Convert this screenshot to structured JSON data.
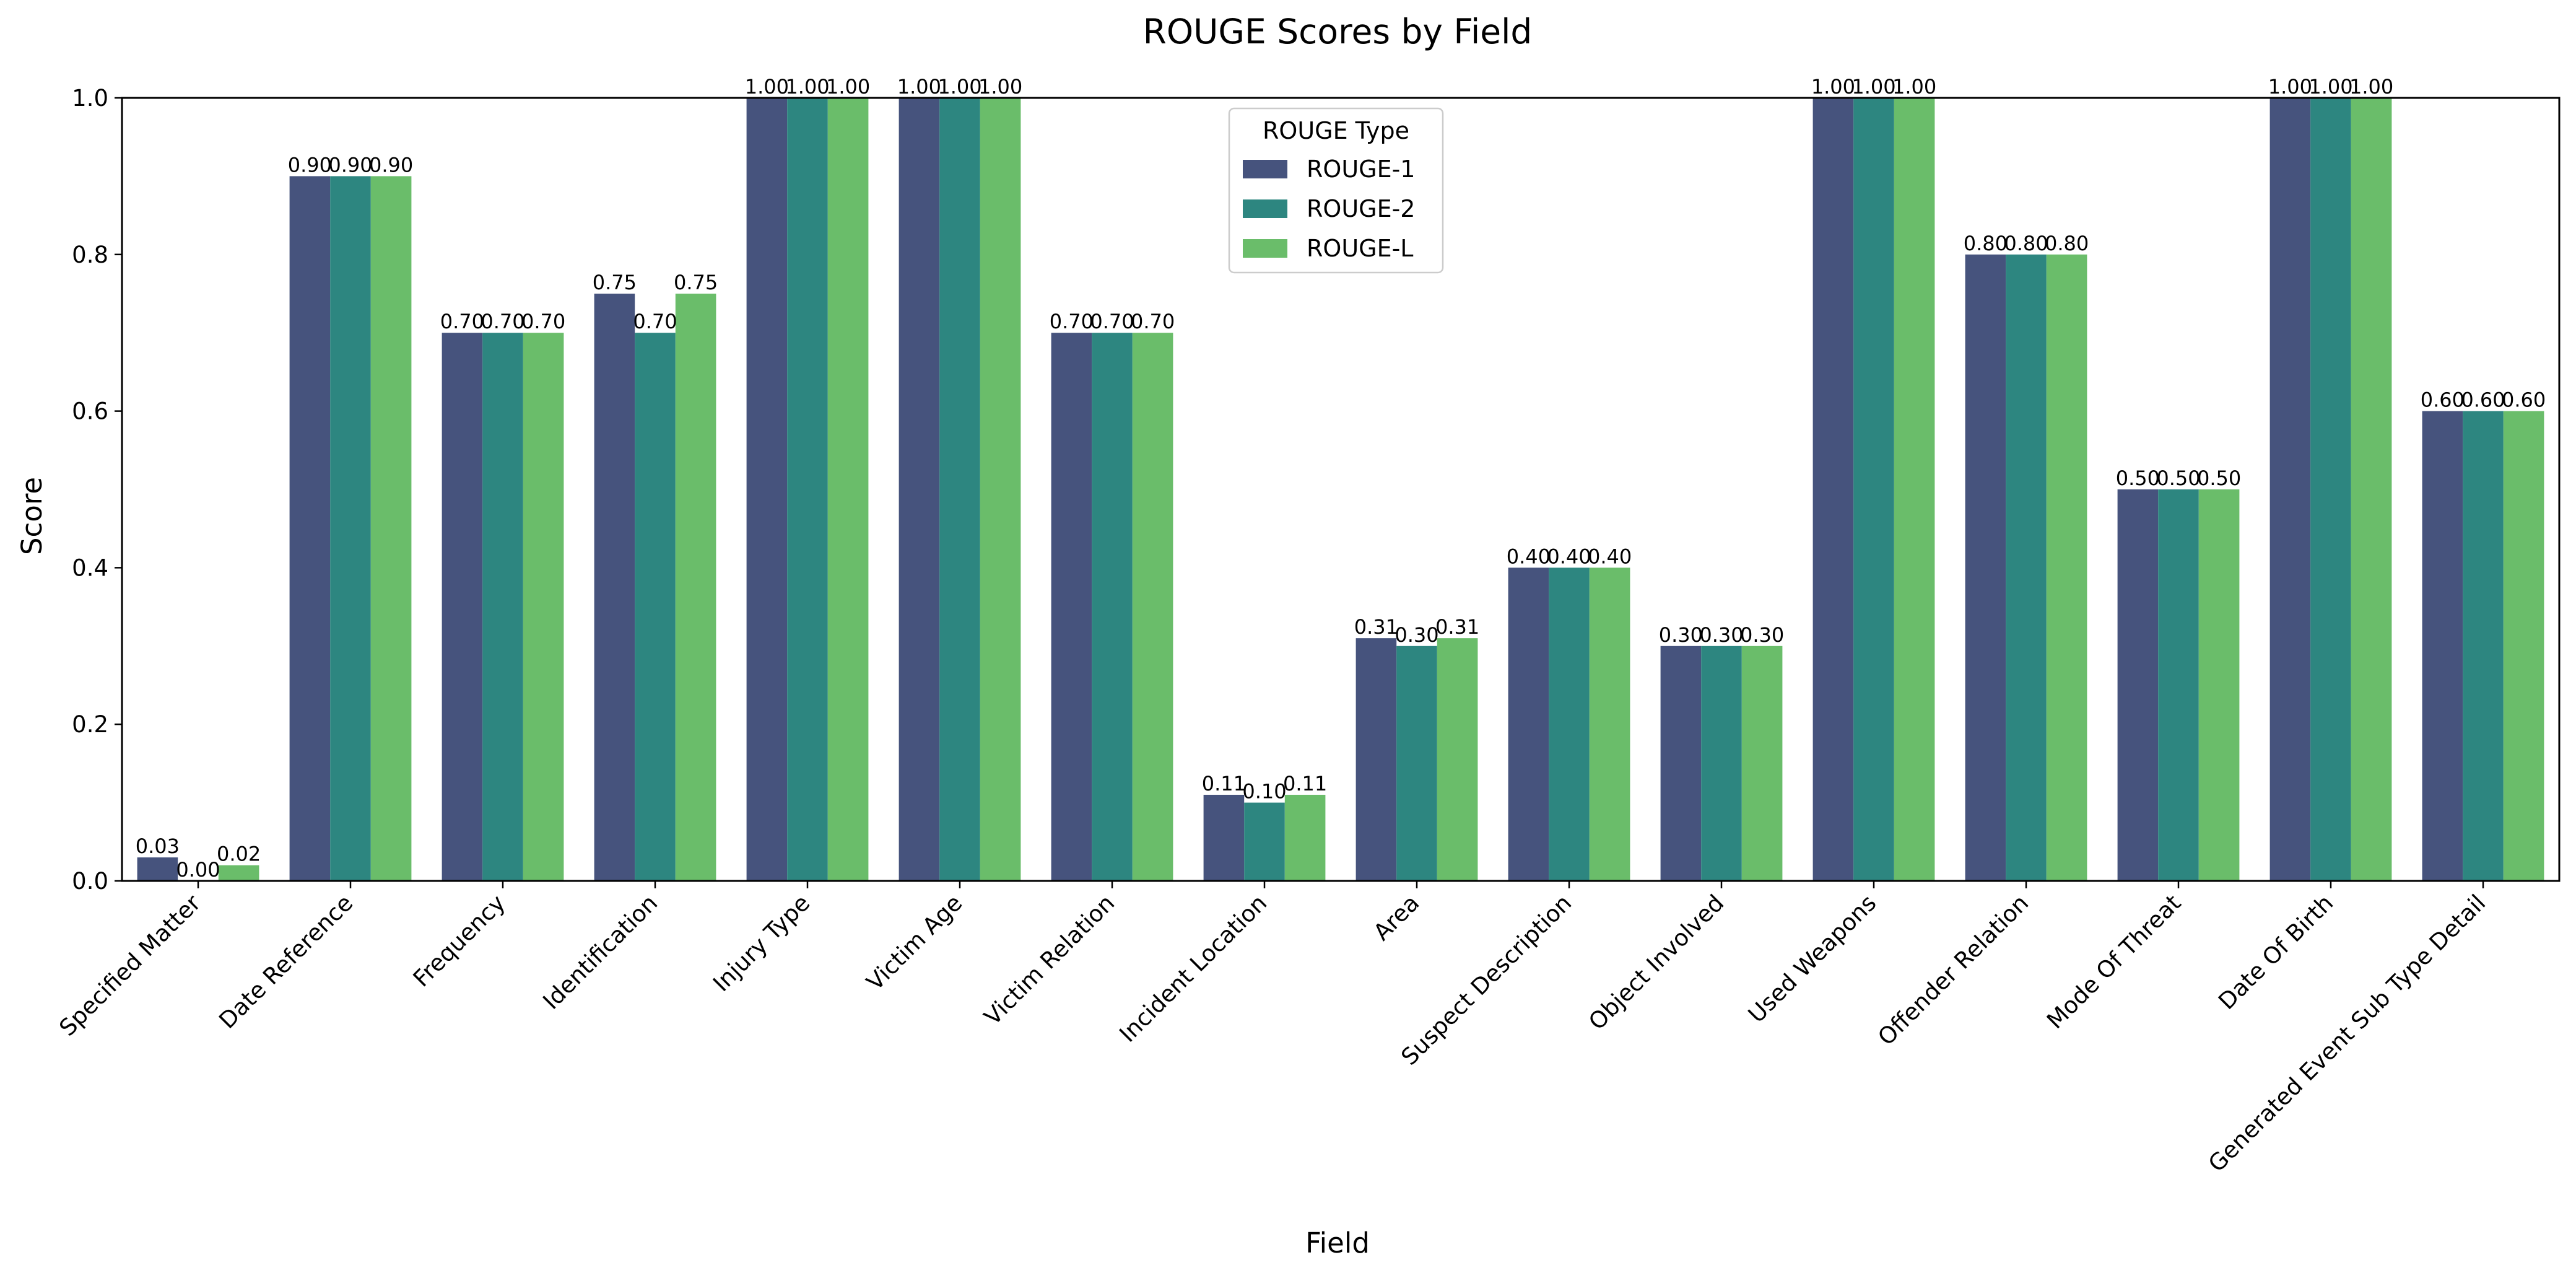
{
  "chart_data": {
    "type": "bar",
    "title": "ROUGE Scores by Field",
    "xlabel": "Field",
    "ylabel": "Score",
    "ylim": [
      0,
      1.0
    ],
    "yticks": [
      "0.0",
      "0.2",
      "0.4",
      "0.6",
      "0.8",
      "1.0"
    ],
    "grid": false,
    "legend_placement": "upper-center",
    "legend_title": "ROUGE Type",
    "categories": [
      "Specified Matter",
      "Date Reference",
      "Frequency",
      "Identification",
      "Injury Type",
      "Victim Age",
      "Victim Relation",
      "Incident Location",
      "Area",
      "Suspect Description",
      "Object Involved",
      "Used Weapons",
      "Offender Relation",
      "Mode Of Threat",
      "Date Of Birth",
      "Generated Event Sub Type Detail"
    ],
    "series": [
      {
        "name": "ROUGE-1",
        "color": "#46537d",
        "values": [
          0.03,
          0.9,
          0.7,
          0.75,
          1.0,
          1.0,
          0.7,
          0.11,
          0.31,
          0.4,
          0.3,
          1.0,
          0.8,
          0.5,
          1.0,
          0.6
        ],
        "labels": [
          "0.03",
          "0.90",
          "0.70",
          "0.75",
          "1.00",
          "1.00",
          "0.70",
          "0.11",
          "0.31",
          "0.40",
          "0.30",
          "1.00",
          "0.80",
          "0.50",
          "1.00",
          "0.60"
        ]
      },
      {
        "name": "ROUGE-2",
        "color": "#2d8680",
        "values": [
          0.0,
          0.9,
          0.7,
          0.7,
          1.0,
          1.0,
          0.7,
          0.1,
          0.3,
          0.4,
          0.3,
          1.0,
          0.8,
          0.5,
          1.0,
          0.6
        ],
        "labels": [
          "0.00",
          "0.90",
          "0.70",
          "0.70",
          "1.00",
          "1.00",
          "0.70",
          "0.10",
          "0.30",
          "0.40",
          "0.30",
          "1.00",
          "0.80",
          "0.50",
          "1.00",
          "0.60"
        ]
      },
      {
        "name": "ROUGE-L",
        "color": "#6abd6a",
        "values": [
          0.02,
          0.9,
          0.7,
          0.75,
          1.0,
          1.0,
          0.7,
          0.11,
          0.31,
          0.4,
          0.3,
          1.0,
          0.8,
          0.5,
          1.0,
          0.6
        ],
        "labels": [
          "0.02",
          "0.90",
          "0.70",
          "0.75",
          "1.00",
          "1.00",
          "0.70",
          "0.11",
          "0.31",
          "0.40",
          "0.30",
          "1.00",
          "0.80",
          "0.50",
          "1.00",
          "0.60"
        ]
      }
    ]
  }
}
